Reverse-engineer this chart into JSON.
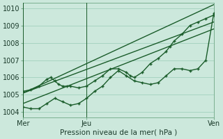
{
  "xlabel": "Pression niveau de la mer( hPa )",
  "background_color": "#cce8dc",
  "plot_bg_color": "#cce8dc",
  "grid_color": "#99ccb8",
  "line_color": "#1a5c2a",
  "ylim": [
    1003.7,
    1010.3
  ],
  "xlim": [
    0,
    48
  ],
  "x_ticks": [
    0,
    16,
    48
  ],
  "x_tick_labels": [
    "Mer",
    "Jeu",
    "Ven"
  ],
  "y_ticks": [
    1004,
    1005,
    1006,
    1007,
    1008,
    1009,
    1010
  ],
  "vlines": [
    0,
    16,
    48
  ],
  "series": [
    {
      "x": [
        0,
        48
      ],
      "y": [
        1005.1,
        1009.2
      ],
      "marker": false,
      "lw": 1.0
    },
    {
      "x": [
        0,
        48
      ],
      "y": [
        1004.5,
        1008.8
      ],
      "marker": false,
      "lw": 1.0
    },
    {
      "x": [
        0,
        48
      ],
      "y": [
        1005.1,
        1010.2
      ],
      "marker": false,
      "lw": 1.0
    },
    {
      "x": [
        0,
        2,
        4,
        6,
        7,
        8,
        9,
        10,
        11,
        12,
        14,
        16,
        18,
        20,
        22,
        24,
        26,
        27,
        28,
        30,
        32,
        34,
        36,
        37,
        38,
        40,
        42,
        44,
        46,
        48
      ],
      "y": [
        1005.2,
        1005.3,
        1005.5,
        1005.9,
        1006.0,
        1005.8,
        1005.6,
        1005.5,
        1005.5,
        1005.5,
        1005.4,
        1005.5,
        1005.8,
        1006.1,
        1006.5,
        1006.5,
        1006.3,
        1006.1,
        1006.0,
        1006.3,
        1006.8,
        1007.1,
        1007.5,
        1007.8,
        1008.1,
        1008.5,
        1009.0,
        1009.2,
        1009.4,
        1009.6
      ],
      "marker": true,
      "lw": 1.0
    },
    {
      "x": [
        0,
        2,
        4,
        6,
        8,
        10,
        12,
        14,
        16,
        18,
        20,
        22,
        24,
        26,
        28,
        30,
        32,
        34,
        36,
        38,
        40,
        42,
        44,
        46,
        48
      ],
      "y": [
        1004.3,
        1004.2,
        1004.2,
        1004.5,
        1004.8,
        1004.6,
        1004.4,
        1004.5,
        1004.8,
        1005.2,
        1005.5,
        1006.0,
        1006.4,
        1006.1,
        1005.8,
        1005.7,
        1005.6,
        1005.7,
        1006.1,
        1006.5,
        1006.5,
        1006.4,
        1006.5,
        1007.0,
        1009.7
      ],
      "marker": true,
      "lw": 1.0
    }
  ]
}
